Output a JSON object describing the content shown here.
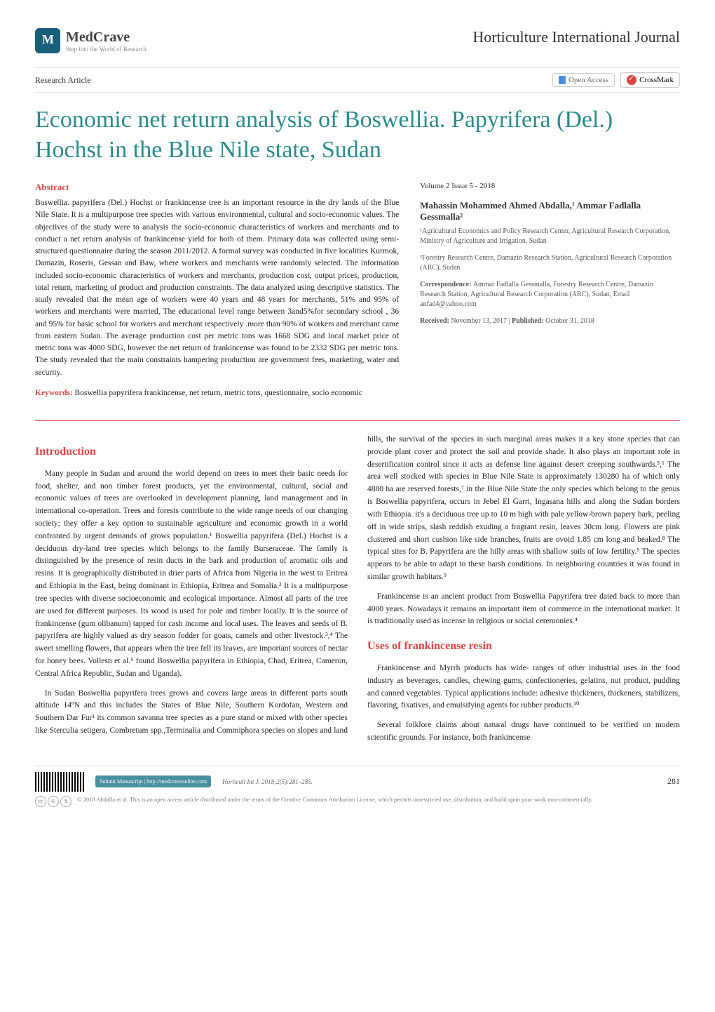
{
  "header": {
    "logo_main": "MedCrave",
    "logo_sub": "Step into the World of Research",
    "journal": "Horticulture International Journal"
  },
  "type_row": {
    "article_type": "Research Article",
    "open_access": "Open Access",
    "crossmark": "CrossMark"
  },
  "title": "Economic net return analysis of Boswellia. Papyrifera (Del.) Hochst in the Blue Nile state, Sudan",
  "abstract": {
    "label": "Abstract",
    "text": "Boswellia. papyrifera (Del.) Hochst or frankincense tree is an important resource in the dry lands of the Blue Nile State. It is a multipurpose tree species with various environmental, cultural and socio-economic values. The objectives of the study were to analysis the socio-economic characteristics of workers and merchants and to conduct a net return analysis of frankincense yield for both of them. Primary data was collected using semi-structured questionnaire during the season 2011/2012. A formal survey was conducted in five localities Kurmok, Damazin, Roseris, Gessan and Baw, where workers and merchants were randomly selected. The information included socio-economic characteristics of workers and merchants, production cost, output prices, production, total return, marketing of product and production constraints. The data analyzed using descriptive statistics. The study revealed that the mean age of workers were 40 years and 48 years for merchants, 51% and 95% of workers and merchants were married, The educational level range between 3and5%for secondary school , 36 and 95% for basic school for workers and merchant respectively .more than 90% of workers and merchant came from eastern Sudan. The average production cost per metric tons was 1668 SDG and local market price of metric tons was 4000 SDG, however the net return of frankincense was found to be 2332 SDG per metric tons. The study revealed that the main constraints hampering production are government fees, marketing, water and security.",
    "keywords_label": "Keywords:",
    "keywords_text": " Boswellia papyrifera frankincense, net return, metric tons, questionnaire, socio economic"
  },
  "meta": {
    "vol_issue": "Volume 2 Issue 5 - 2018",
    "authors": "Mahassin Mohammed Ahmed Abdalla,¹ Ammar Fadlalla Gessmalla²",
    "affil1": "¹Agricultural Economics and Policy Research Center, Agricultural Research Corporation, Ministry of Agriculture and Irrigation, Sudan",
    "affil2": "²Forestry Research Centre, Damazin Research Station, Agricultural Research Corporation (ARC), Sudan",
    "corr_label": "Correspondence: ",
    "corr_text": "Ammar Fadlalla Gessmalla, Forestry Research Centre, Damazin Research Station, Agricultural Research Corporation (ARC), Sudan, Email anfad4@yahoo.com",
    "dates_recv_label": "Received: ",
    "dates_recv": "November 13, 2017 | ",
    "dates_pub_label": "Published: ",
    "dates_pub": "October 31, 2018"
  },
  "sections": {
    "intro_heading": "Introduction",
    "intro_p1": "Many people in Sudan and around the world depend on trees to meet their basic needs for food, shelter, and non timber forest products, yet the environmental, cultural, social and economic values of trees are overlooked in development planning, land management and in international co-operation. Trees and forests contribute to the wide range needs of our changing society; they offer a key option to sustainable agriculture and economic growth in a world confronted by urgent demands of grows population.¹ Boswellia papyrifera (Del.) Hochst is a deciduous dry-land tree species which belongs to the family Burseraceae. The family is distinguished by the presence of resin ducts in the bark and production of aromatic oils and resins. It is geographically distributed in drier parts of Africa from Nigeria in the west to Eritrea and Ethiopia in the East, being dominant in Ethiopia, Eritrea and Somalia.² It is a multipurpose tree species with diverse socioeconomic and ecological importance. Almost all parts of the tree are used for different purposes. Its wood is used for pole and timber locally. It is the source of frankincense (gum olibanum) tapped for cash income and local uses. The leaves and seeds of B. papyrifera are highly valued as dry season fodder for goats, camels and other livestock.³,⁴ The sweet smelling flowers, that appears when the tree fell its leaves, are important sources of nectar for honey bees. Vollesn et al.⁵ found Boswellia papyrifera in Ethiopia, Chad, Eritrea, Cameron, Central Africa Republic, Sudan and Uganda).",
    "intro_p2": " In Sudan Boswellia papyrifera trees grows and covers large areas in different parts south altitude 14ºN and this includes the States of Blue Nile, Southern Kordofan, Western and Southern Dar Fur¹ its common savanna tree species as a pure stand or mixed with other species like Sterculia setigera, Combretum spp.,Terminalia and Commiphora species on slopes and land hills, the survival of the species in such marginal areas makes it a key stone species that can provide plant cover and protect the soil and provide shade. It also plays an important role in desertification control since it acts as defense line against desert creeping southwards.³,⁶ The area well stocked with species in Blue Nile State is approximately 130280 ha of which only 4880 ha are reserved forests,⁷ in the Blue Nile State the only species which belong to the genus is Boswellia papyrifera, occurs in Jebel El Garri, Ingasana hills and along the Sudan borders with Ethiopia. it's a deciduous tree up to 10 m high with pale yellow-brown papery bark, peeling off in wide strips, slash reddish exuding a fragrant resin, leaves 30cm long. Flowers are pink clustered and short cushion like side branches, fruits are ovoid 1.85 cm long and beaked.⁸ The typical sites for B. Papyrifera are the hilly areas with shallow soils of low fertility.⁹ The species appears to be able to adapt to these harsh conditions. In neighboring countries it was found in similar growth habitats.⁹",
    "intro_p3": "Frankincense is an ancient product from Boswellia Papyrifera tree dated back to more than 4000 years. Nowadays it remains an important item of commerce in the international market. It is traditionally used as incense in religious or social ceremonies.⁴",
    "uses_heading": "Uses of frankincense resin",
    "uses_p1": "Frankincense and Myrrh products has wide- ranges of other industrial uses in the food industry as beverages, candles, chewing gums, confectioneries, gelatins, nut product, pudding and canned vegetables. Typical applications include: adhesive thickeners, thickeners, stabilizers, flavoring, fixatives, and emulsifying agents for rubber products.¹⁰",
    "uses_p2": "Several folklore claims about natural drugs have continued to be verified on modern scientific grounds. For instance, both frankincense"
  },
  "footer": {
    "submit": "Submit Manuscript | http://medcraveonline.com",
    "citation": "Horticult Int J. 2018;2(5):281–285.",
    "page_num": "281",
    "cc_text": "© 2018 Abdalla et al. This is an open access article distributed under the terms of the Creative Commons Attribution License, which permits unrestricted use, distribution, and build upon your work non-commercially."
  },
  "colors": {
    "accent_red": "#d94545",
    "accent_teal": "#2a8a8a",
    "text": "#222222",
    "muted": "#666666",
    "border": "#e0e0e0"
  },
  "typography": {
    "title_fontsize": 34,
    "body_fontsize": 11.5,
    "section_heading_fontsize": 16,
    "meta_fontsize": 10
  }
}
